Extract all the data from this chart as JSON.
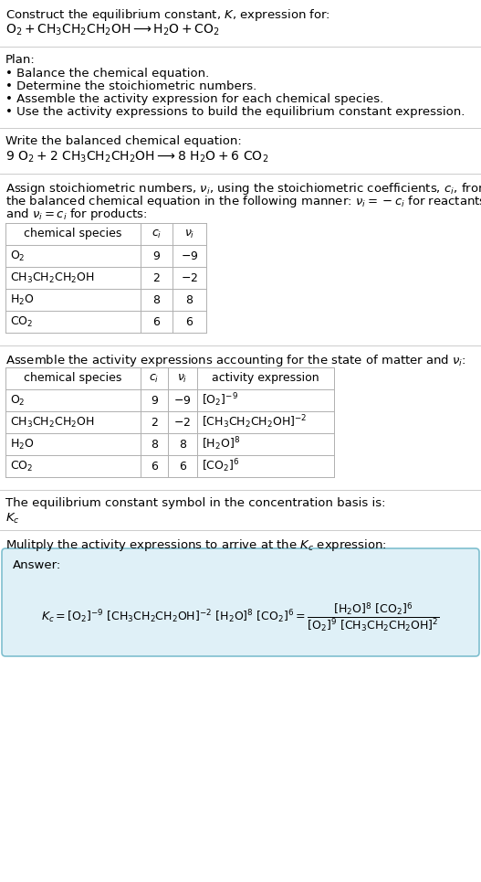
{
  "title_line1": "Construct the equilibrium constant, $K$, expression for:",
  "title_line2": "$\\mathrm{O_2 + CH_3CH_2CH_2OH \\longrightarrow H_2O + CO_2}$",
  "plan_header": "Plan:",
  "plan_bullets": [
    "• Balance the chemical equation.",
    "• Determine the stoichiometric numbers.",
    "• Assemble the activity expression for each chemical species.",
    "• Use the activity expressions to build the equilibrium constant expression."
  ],
  "balanced_header": "Write the balanced chemical equation:",
  "balanced_eq": "$9\\ \\mathrm{O_2} + 2\\ \\mathrm{CH_3CH_2CH_2OH} \\longrightarrow 8\\ \\mathrm{H_2O} + 6\\ \\mathrm{CO_2}$",
  "stoich_intro": "Assign stoichiometric numbers, $\\nu_i$, using the stoichiometric coefficients, $c_i$, from\nthe balanced chemical equation in the following manner: $\\nu_i = -c_i$ for reactants\nand $\\nu_i = c_i$ for products:",
  "stoich_col_headers": [
    "chemical species",
    "$c_i$",
    "$\\nu_i$"
  ],
  "stoich_rows": [
    [
      "$\\mathrm{O_2}$",
      "9",
      "$-9$"
    ],
    [
      "$\\mathrm{CH_3CH_2CH_2OH}$",
      "2",
      "$-2$"
    ],
    [
      "$\\mathrm{H_2O}$",
      "8",
      "8"
    ],
    [
      "$\\mathrm{CO_2}$",
      "6",
      "6"
    ]
  ],
  "activity_intro": "Assemble the activity expressions accounting for the state of matter and $\\nu_i$:",
  "activity_col_headers": [
    "chemical species",
    "$c_i$",
    "$\\nu_i$",
    "activity expression"
  ],
  "activity_rows": [
    [
      "$\\mathrm{O_2}$",
      "9",
      "$-9$",
      "$[\\mathrm{O_2}]^{-9}$"
    ],
    [
      "$\\mathrm{CH_3CH_2CH_2OH}$",
      "2",
      "$-2$",
      "$[\\mathrm{CH_3CH_2CH_2OH}]^{-2}$"
    ],
    [
      "$\\mathrm{H_2O}$",
      "8",
      "8",
      "$[\\mathrm{H_2O}]^{8}$"
    ],
    [
      "$\\mathrm{CO_2}$",
      "6",
      "6",
      "$[\\mathrm{CO_2}]^{6}$"
    ]
  ],
  "kc_header": "The equilibrium constant symbol in the concentration basis is:",
  "kc_symbol": "$K_c$",
  "multiply_header": "Mulitply the activity expressions to arrive at the $K_c$ expression:",
  "answer_label": "Answer:",
  "kc_expr1": "$K_c = [\\mathrm{O_2}]^{-9}\\ [\\mathrm{CH_3CH_2CH_2OH}]^{-2}\\ [\\mathrm{H_2O}]^{8}\\ [\\mathrm{CO_2}]^{6} = \\dfrac{[\\mathrm{H_2O}]^8\\ [\\mathrm{CO_2}]^6}{[\\mathrm{O_2}]^9\\ [\\mathrm{CH_3CH_2CH_2OH}]^2}$",
  "bg_color": "#ffffff",
  "table_border_color": "#b0b0b0",
  "answer_box_bg": "#dff0f7",
  "answer_box_border": "#7fbfcf",
  "sep_color": "#cccccc",
  "text_color": "#000000",
  "fs": 9.5,
  "fs_eq": 10,
  "fs_table": 9,
  "lm": 6,
  "pw": 515
}
